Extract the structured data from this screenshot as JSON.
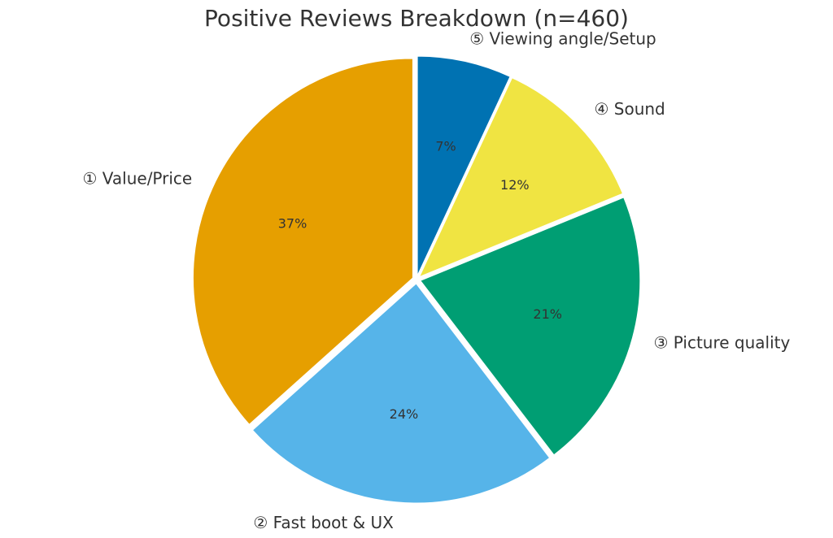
{
  "chart_data": {
    "type": "pie",
    "title": "Positive Reviews Breakdown (n=460)",
    "categories": [
      "① Value/Price",
      "② Fast boot & UX",
      "③ Picture quality",
      "④ Sound",
      "⑤ Viewing angle/Setup"
    ],
    "values": [
      37,
      24,
      21,
      12,
      7
    ],
    "value_labels": [
      "37%",
      "24%",
      "21%",
      "12%",
      "7%"
    ],
    "colors": [
      "#E69F00",
      "#56B4E9",
      "#009E73",
      "#F0E442",
      "#0072B2"
    ]
  }
}
